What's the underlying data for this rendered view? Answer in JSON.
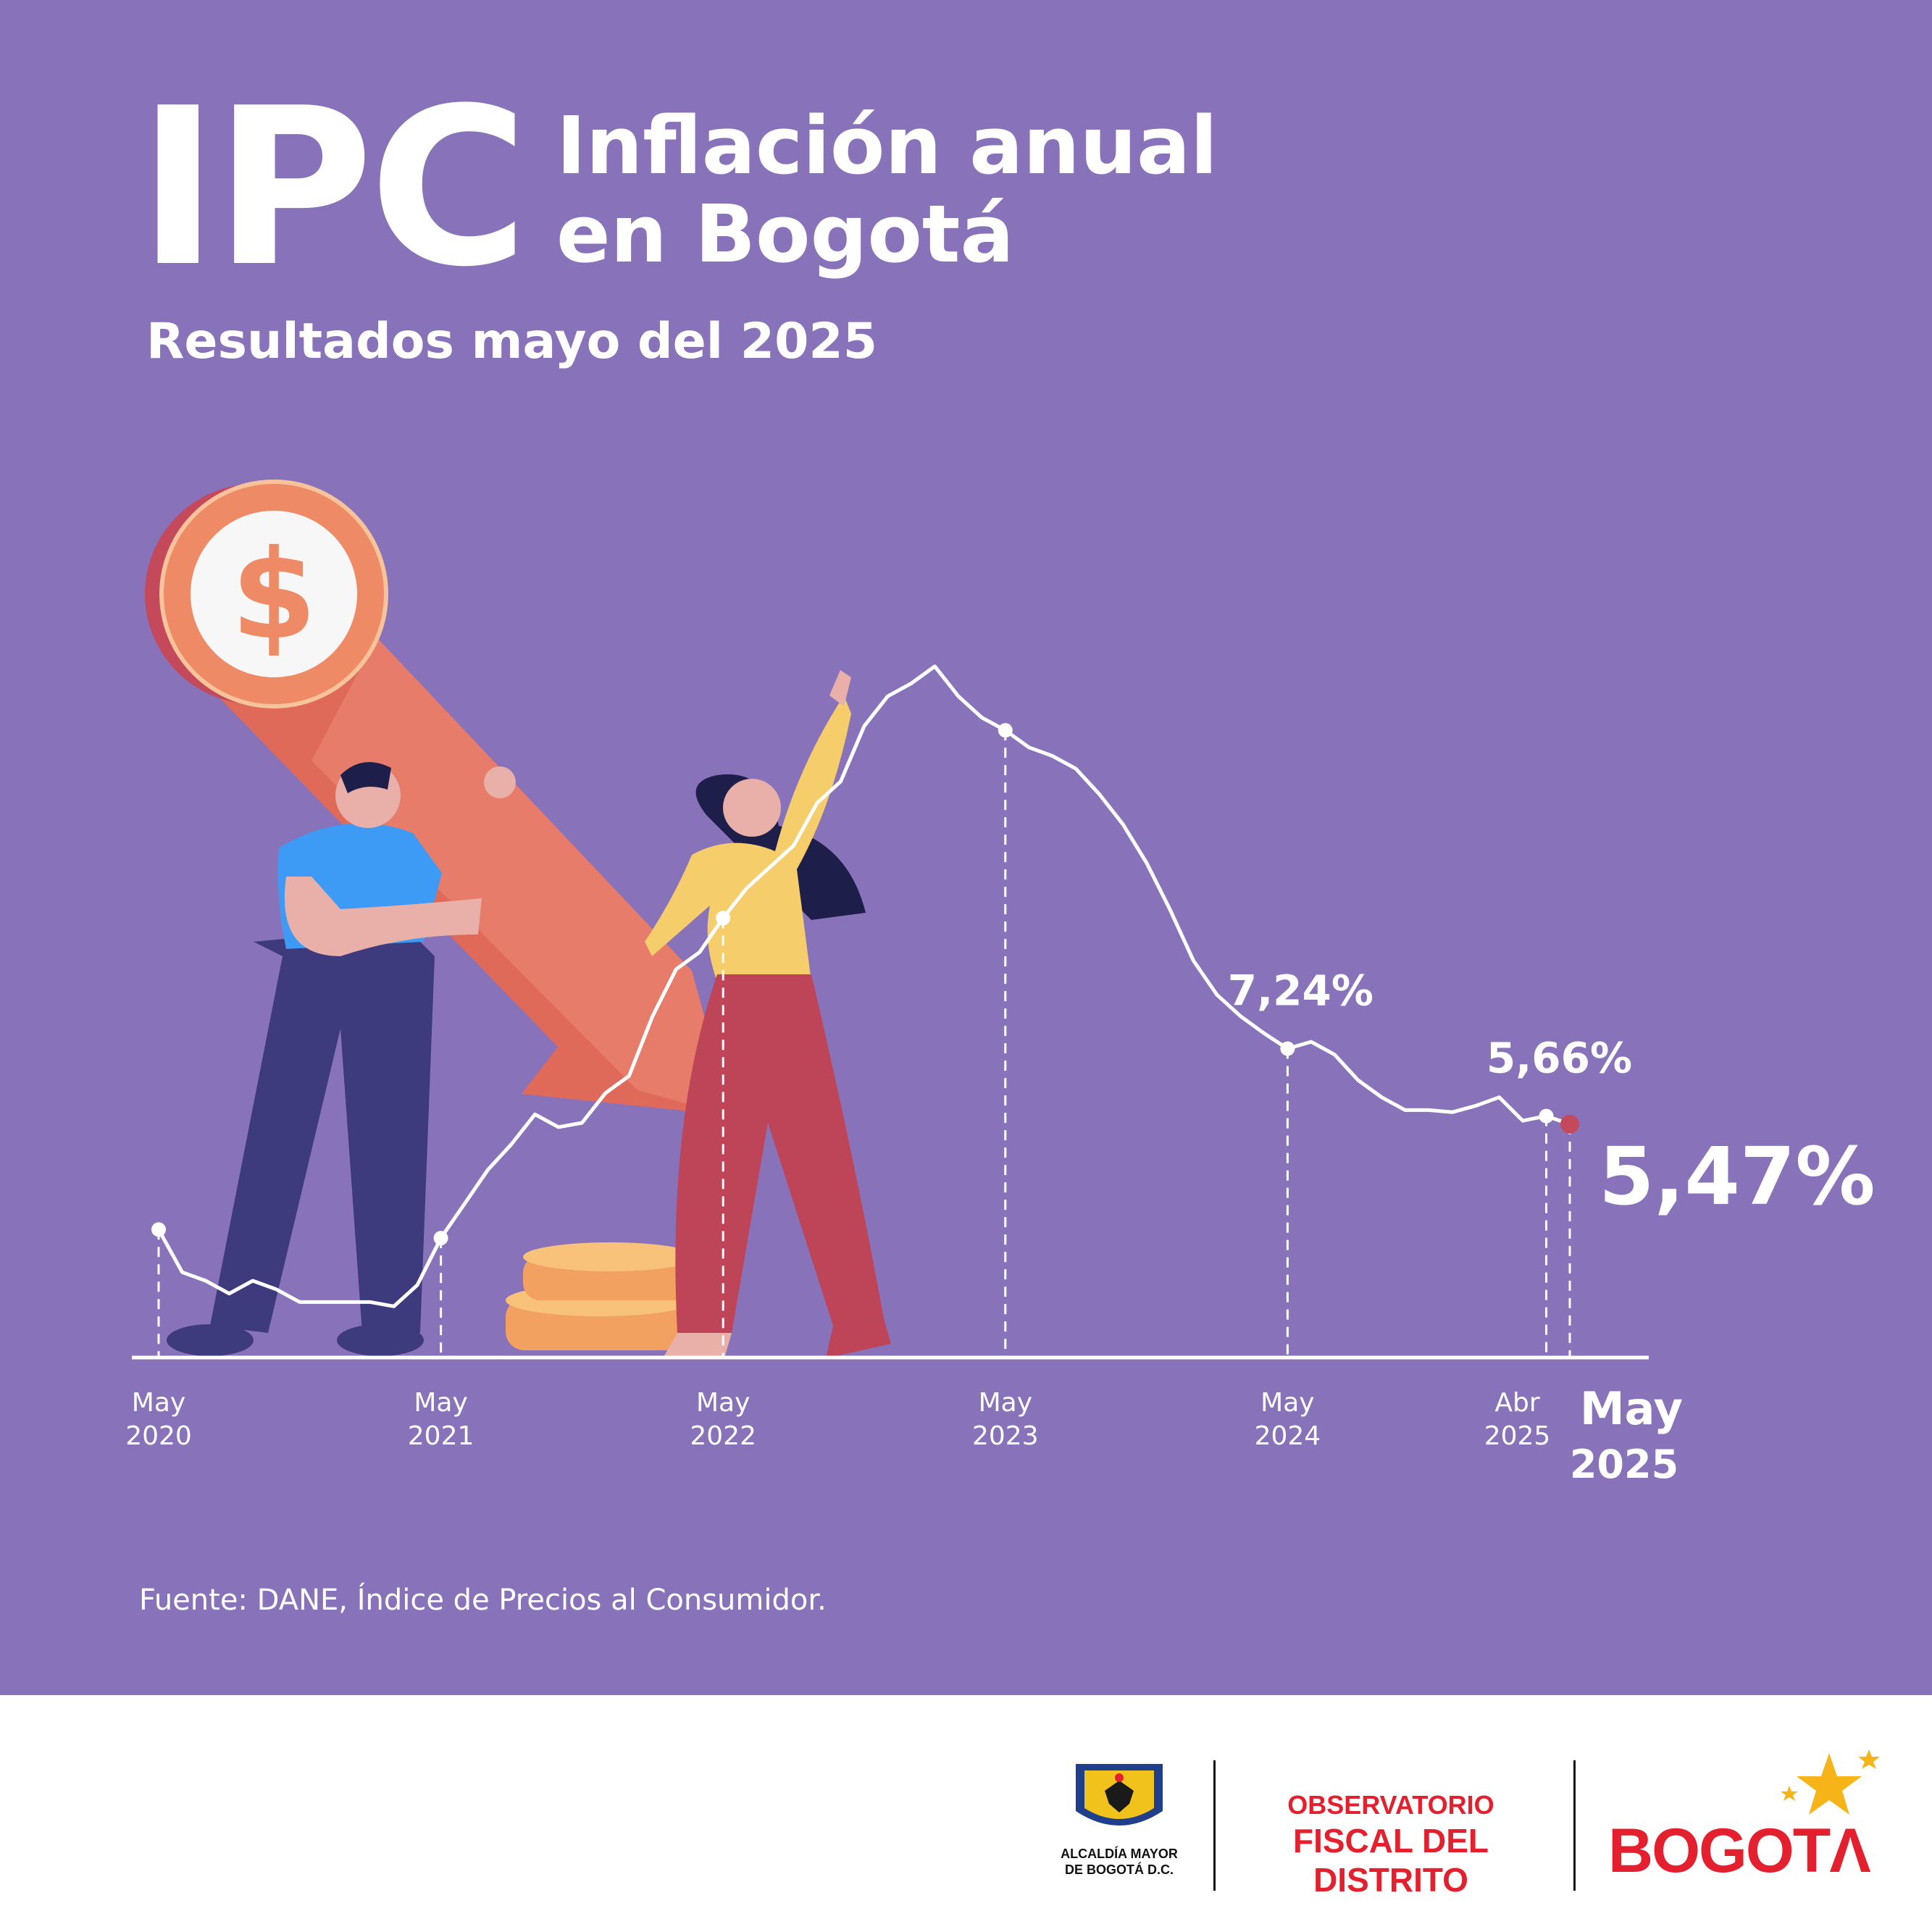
{
  "header": {
    "ipc": "IPC",
    "title_line1": "Inflación anual",
    "title_line2": "en Bogotá",
    "subtitle": "Resultados mayo del 2025"
  },
  "source": "Fuente:  DANE, Índice de Precios al Consumidor.",
  "colors": {
    "background": "#8873BA",
    "line": "#FFFFFF",
    "highlight_point": "#C44A5B",
    "red_brand": "#E4202E"
  },
  "logos": {
    "alcaldia_line1": "ALCALDÍA MAYOR",
    "alcaldia_line2": "DE BOGOTÁ D.C.",
    "observatorio_line1": "OBSERVATORIO",
    "observatorio_line2": "FISCAL DEL DISTRITO",
    "bogota": "BOGOTΛ"
  },
  "chart_data": {
    "type": "line",
    "ylabel": "",
    "xlabel": "",
    "ylim": [
      0,
      20
    ],
    "grid": false,
    "ticks": [
      {
        "line1": "May",
        "line2": "2020",
        "x": 0,
        "bold": false
      },
      {
        "line1": "May",
        "line2": "2021",
        "x": 12,
        "bold": false
      },
      {
        "line1": "May",
        "line2": "2022",
        "x": 24,
        "bold": false
      },
      {
        "line1": "May",
        "line2": "2023",
        "x": 36,
        "bold": false
      },
      {
        "line1": "May",
        "line2": "2024",
        "x": 48,
        "bold": false
      },
      {
        "line1": "Abr",
        "line2": "2025",
        "x": 59,
        "bold": false
      },
      {
        "line1": "May",
        "line2": "2025",
        "x": 60,
        "bold": true
      }
    ],
    "series": [
      {
        "points": [
          {
            "x": 0,
            "y": 3.0
          },
          {
            "x": 1,
            "y": 2.0
          },
          {
            "x": 2,
            "y": 1.8
          },
          {
            "x": 3,
            "y": 1.5
          },
          {
            "x": 4,
            "y": 1.8
          },
          {
            "x": 5,
            "y": 1.6
          },
          {
            "x": 6,
            "y": 1.3
          },
          {
            "x": 7,
            "y": 1.3
          },
          {
            "x": 8,
            "y": 1.3
          },
          {
            "x": 9,
            "y": 1.3
          },
          {
            "x": 10,
            "y": 1.2
          },
          {
            "x": 11,
            "y": 1.7
          },
          {
            "x": 12,
            "y": 2.8
          },
          {
            "x": 13,
            "y": 3.6
          },
          {
            "x": 14,
            "y": 4.4
          },
          {
            "x": 15,
            "y": 5.0
          },
          {
            "x": 16,
            "y": 5.7
          },
          {
            "x": 17,
            "y": 5.4
          },
          {
            "x": 18,
            "y": 5.5
          },
          {
            "x": 19,
            "y": 6.2
          },
          {
            "x": 20,
            "y": 6.6
          },
          {
            "x": 21,
            "y": 8.0
          },
          {
            "x": 22,
            "y": 9.1
          },
          {
            "x": 23,
            "y": 9.5
          },
          {
            "x": 24,
            "y": 10.3
          },
          {
            "x": 25,
            "y": 11.0
          },
          {
            "x": 26,
            "y": 11.5
          },
          {
            "x": 27,
            "y": 12.0
          },
          {
            "x": 28,
            "y": 13.0
          },
          {
            "x": 29,
            "y": 13.5
          },
          {
            "x": 30,
            "y": 14.8
          },
          {
            "x": 31,
            "y": 15.5
          },
          {
            "x": 32,
            "y": 15.8
          },
          {
            "x": 33,
            "y": 16.2
          },
          {
            "x": 34,
            "y": 15.5
          },
          {
            "x": 35,
            "y": 15.0
          },
          {
            "x": 36,
            "y": 14.7
          },
          {
            "x": 37,
            "y": 14.3
          },
          {
            "x": 38,
            "y": 14.1
          },
          {
            "x": 39,
            "y": 13.8
          },
          {
            "x": 40,
            "y": 13.2
          },
          {
            "x": 41,
            "y": 12.5
          },
          {
            "x": 42,
            "y": 11.6
          },
          {
            "x": 43,
            "y": 10.5
          },
          {
            "x": 44,
            "y": 9.3
          },
          {
            "x": 45,
            "y": 8.5
          },
          {
            "x": 46,
            "y": 8.0
          },
          {
            "x": 47,
            "y": 7.6
          },
          {
            "x": 48,
            "y": 7.24
          },
          {
            "x": 49,
            "y": 7.4
          },
          {
            "x": 50,
            "y": 7.1
          },
          {
            "x": 51,
            "y": 6.5
          },
          {
            "x": 52,
            "y": 6.1
          },
          {
            "x": 53,
            "y": 5.8
          },
          {
            "x": 54,
            "y": 5.8
          },
          {
            "x": 55,
            "y": 5.75
          },
          {
            "x": 56,
            "y": 5.9
          },
          {
            "x": 57,
            "y": 6.1
          },
          {
            "x": 58,
            "y": 5.55
          },
          {
            "x": 59,
            "y": 5.66
          },
          {
            "x": 60,
            "y": 5.47
          }
        ]
      }
    ],
    "highlights": [
      0,
      12,
      24,
      36,
      48,
      59,
      60
    ],
    "annotations": [
      {
        "x": 48,
        "y": 7.24,
        "text": "7,24%",
        "size": "normal"
      },
      {
        "x": 59,
        "y": 5.66,
        "text": "5,66%",
        "size": "normal"
      },
      {
        "x": 60,
        "y": 5.47,
        "text": "5,47%",
        "size": "big"
      }
    ]
  }
}
